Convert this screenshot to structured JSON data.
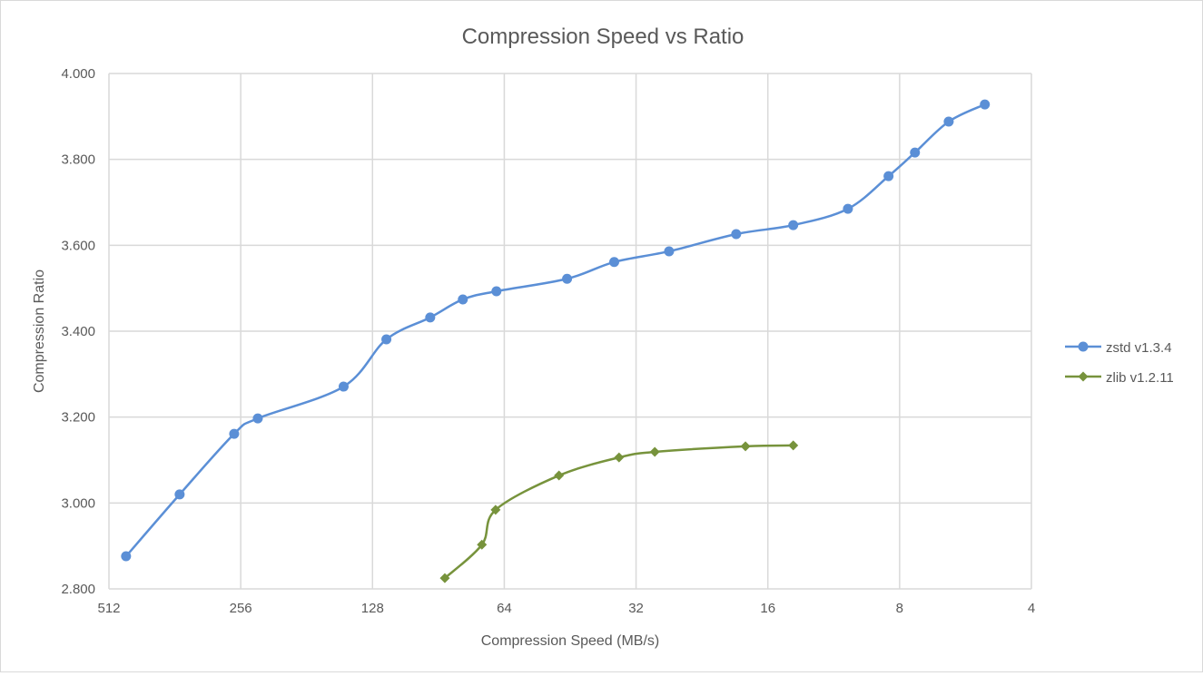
{
  "chart_data": {
    "type": "line",
    "title": "Compression Speed vs Ratio",
    "xlabel": "Compression Speed (MB/s)",
    "ylabel": "Compression Ratio",
    "x_scale": "log2",
    "x_reversed": true,
    "xlim": [
      512,
      4
    ],
    "ylim": [
      2.8,
      4.0
    ],
    "x_ticks": [
      "512",
      "256",
      "128",
      "64",
      "32",
      "16",
      "8",
      "4"
    ],
    "y_ticks": [
      "2.800",
      "3.000",
      "3.200",
      "3.400",
      "3.600",
      "3.800",
      "4.000"
    ],
    "grid": true,
    "legend_position": "right",
    "series": [
      {
        "name": "zstd v1.3.4",
        "color": "#5B8FD6",
        "marker": "circle",
        "x": [
          468,
          353,
          265,
          234,
          149,
          119,
          94.5,
          79.6,
          66.7,
          46,
          35.9,
          26.9,
          18.9,
          14.0,
          10.5,
          8.48,
          7.38,
          6.18,
          5.11
        ],
        "y": [
          2.876,
          3.02,
          3.161,
          3.197,
          3.271,
          3.381,
          3.432,
          3.474,
          3.493,
          3.522,
          3.561,
          3.586,
          3.626,
          3.647,
          3.685,
          3.761,
          3.816,
          3.888,
          3.928
        ]
      },
      {
        "name": "zlib v1.2.11",
        "color": "#77933C",
        "marker": "diamond",
        "x": [
          87.5,
          72,
          67,
          48,
          35,
          29,
          18,
          14
        ],
        "y": [
          2.825,
          2.903,
          2.984,
          3.064,
          3.106,
          3.119,
          3.132,
          3.134
        ]
      }
    ]
  }
}
